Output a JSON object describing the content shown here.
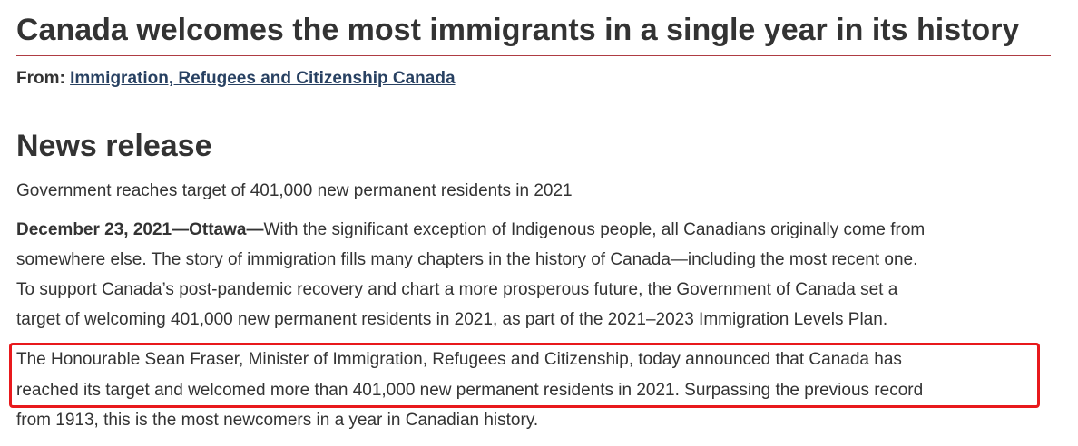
{
  "header": {
    "title": "Canada welcomes the most immigrants in a single year in its history",
    "from_label": "From:",
    "from_link": "Immigration, Refugees and Citizenship Canada"
  },
  "section": {
    "heading": "News release",
    "subtitle": "Government reaches target of 401,000 new permanent residents in 2021",
    "paragraphs": [
      {
        "lead": "December 23, 2021—Ottawa—",
        "lines": [
          "With the significant exception of Indigenous people, all Canadians originally come from",
          "somewhere else. The story of immigration fills many chapters in the history of Canada—including the most recent one.",
          "To support Canada’s post-pandemic recovery and chart a more prosperous future, the Government of Canada set a",
          "target of welcoming 401,000 new permanent residents in 2021, as part of the 2021–2023 Immigration Levels Plan."
        ]
      },
      {
        "lines": [
          "The Honourable Sean Fraser, Minister of Immigration, Refugees and Citizenship, today announced that Canada has",
          "reached its target and welcomed more than 401,000 new permanent residents in 2021. Surpassing the previous record",
          "from 1913, this is the most newcomers in a year in Canadian history."
        ]
      }
    ]
  }
}
